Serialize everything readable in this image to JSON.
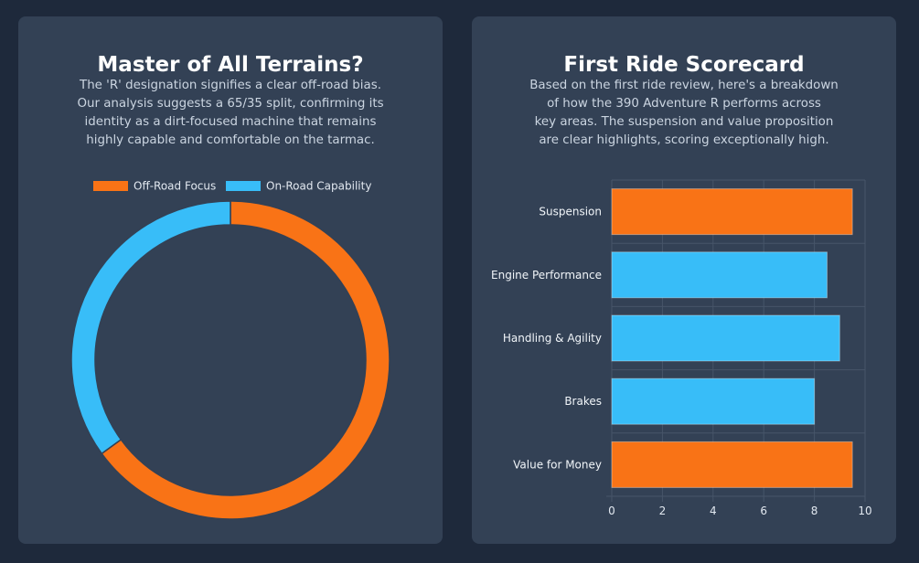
{
  "colors": {
    "page_bg": "#1e293b",
    "card_bg": "#334155",
    "orange": "#f97316",
    "blue": "#38bdf8",
    "text_muted": "#cbd5e1",
    "grid": "#475569"
  },
  "left_card": {
    "title": "Master of All Terrains?",
    "description_lines": [
      "The 'R' designation signifies a clear off-road bias.",
      "Our analysis suggests a 65/35 split, confirming its",
      "identity as a dirt-focused machine that remains",
      "highly capable and comfortable on the tarmac."
    ]
  },
  "right_card": {
    "title": "First Ride Scorecard",
    "description_lines": [
      "Based on the first ride review, here's a breakdown",
      "of how the 390 Adventure R performs across",
      "key areas. The suspension and value proposition",
      "are clear highlights, scoring exceptionally high."
    ]
  },
  "chart_data": [
    {
      "type": "pie",
      "variant": "doughnut",
      "labels": [
        "Off-Road Focus",
        "On-Road Capability"
      ],
      "values": [
        65,
        35
      ],
      "colors": [
        "#f97316",
        "#38bdf8"
      ],
      "legend": "top",
      "start_angle_deg": 0
    },
    {
      "type": "bar",
      "orientation": "horizontal",
      "categories": [
        "Suspension",
        "Engine Performance",
        "Handling & Agility",
        "Brakes",
        "Value for Money"
      ],
      "values": [
        9.5,
        8.5,
        9,
        8,
        9.5
      ],
      "bar_colors": [
        "#f97316",
        "#38bdf8",
        "#38bdf8",
        "#38bdf8",
        "#f97316"
      ],
      "xlim": [
        0,
        10
      ],
      "xticks": [
        0,
        2,
        4,
        6,
        8,
        10
      ],
      "grid": true,
      "legend": "none"
    }
  ]
}
